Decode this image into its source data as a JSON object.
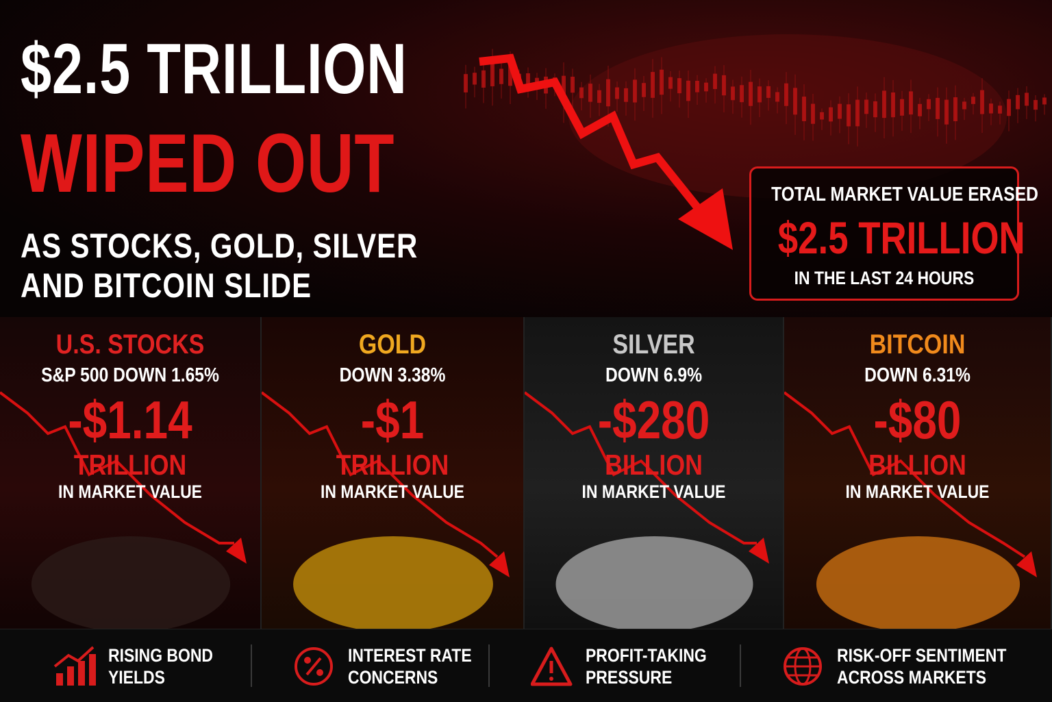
{
  "headline": {
    "line1": "$2.5 TRILLION",
    "line2": "WIPED OUT",
    "line3": "AS STOCKS, GOLD, SILVER",
    "line4": "AND BITCOIN SLIDE"
  },
  "summary_box": {
    "label": "TOTAL MARKET VALUE ERASED",
    "amount": "$2.5 TRILLION",
    "period": "IN THE LAST 24 HOURS"
  },
  "cards": [
    {
      "title": "U.S. STOCKS",
      "change": "S&P 500 DOWN 1.65%",
      "amount": "-$1.14",
      "unit": "TRILLION",
      "note": "IN MARKET VALUE",
      "color": "#e02222"
    },
    {
      "title": "GOLD",
      "change": "DOWN 3.38%",
      "amount": "-$1",
      "unit": "TRILLION",
      "note": "IN MARKET VALUE",
      "color": "#f0a820"
    },
    {
      "title": "SILVER",
      "change": "DOWN 6.9%",
      "amount": "-$280",
      "unit": "BILLION",
      "note": "IN MARKET VALUE",
      "color": "#c8c8c8"
    },
    {
      "title": "BITCOIN",
      "change": "DOWN 6.31%",
      "amount": "-$80",
      "unit": "BILLION",
      "note": "IN MARKET VALUE",
      "color": "#f08a1c"
    }
  ],
  "factors": [
    {
      "line1": "RISING BOND",
      "line2": "YIELDS"
    },
    {
      "line1": "INTEREST RATE",
      "line2": "CONCERNS"
    },
    {
      "line1": "PROFIT-TAKING",
      "line2": "PRESSURE"
    },
    {
      "line1": "RISK-OFF SENTIMENT",
      "line2": "ACROSS MARKETS"
    }
  ]
}
